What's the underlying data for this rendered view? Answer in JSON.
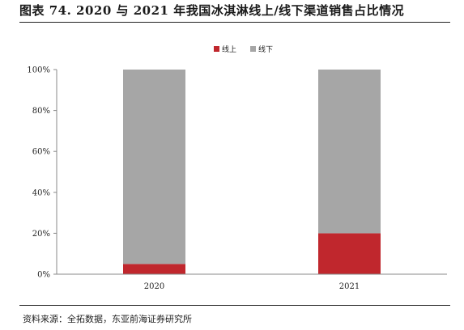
{
  "figure": {
    "title": "图表 74. 2020 与 2021 年我国冰淇淋线上/线下渠道销售占比情况",
    "source": "资料来源：全拓数据，东亚前海证券研究所"
  },
  "colors": {
    "online": "#c0272d",
    "offline": "#a6a6a6",
    "axis": "#888888",
    "text": "#222222"
  },
  "chart_data": {
    "type": "bar",
    "stacked": true,
    "percent": true,
    "categories": [
      "2020",
      "2021"
    ],
    "series": [
      {
        "name": "线上",
        "values": [
          5,
          20
        ],
        "color": "#c0272d"
      },
      {
        "name": "线下",
        "values": [
          95,
          80
        ],
        "color": "#a6a6a6"
      }
    ],
    "ylim": [
      0,
      100
    ],
    "yticks": [
      "0%",
      "20%",
      "40%",
      "60%",
      "80%",
      "100%"
    ],
    "title": "",
    "xlabel": "",
    "ylabel": "",
    "grid": false,
    "legend": "top-center"
  }
}
